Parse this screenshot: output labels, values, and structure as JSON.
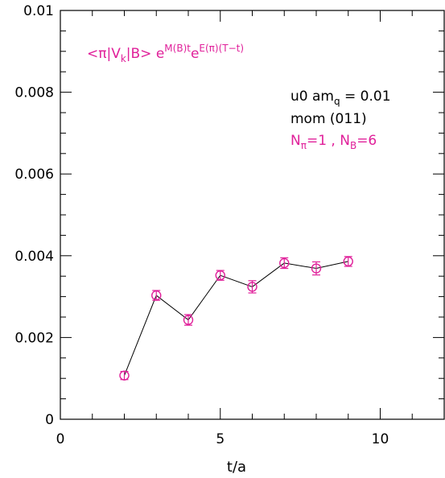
{
  "chart_data": {
    "type": "scatter",
    "xlabel": "t/a",
    "ylabel": "",
    "xlim": [
      0,
      12
    ],
    "ylim": [
      0,
      0.01
    ],
    "x_ticks": [
      "0",
      "5",
      "10"
    ],
    "y_ticks": [
      "0",
      "0.002",
      "0.004",
      "0.006",
      "0.008",
      "0.01"
    ],
    "grid": false,
    "series": [
      {
        "color": "#e0209a",
        "line_color": "#000000",
        "marker": "open-circle",
        "points": [
          {
            "x": 2,
            "y": 0.00107,
            "err": 0.0001
          },
          {
            "x": 3,
            "y": 0.00303,
            "err": 0.00012
          },
          {
            "x": 4,
            "y": 0.00243,
            "err": 0.00013
          },
          {
            "x": 5,
            "y": 0.00352,
            "err": 0.00012
          },
          {
            "x": 6,
            "y": 0.00324,
            "err": 0.00015
          },
          {
            "x": 7,
            "y": 0.00382,
            "err": 0.00013
          },
          {
            "x": 8,
            "y": 0.00369,
            "err": 0.00016
          },
          {
            "x": 9,
            "y": 0.00386,
            "err": 0.00012
          }
        ]
      }
    ],
    "annotations": {
      "formula": {
        "color": "#e0209a",
        "lt": "<π|V",
        "sub_k": "k",
        "mid": "|B>  e",
        "sup1": "M(B)t",
        "e2": "e",
        "sup2": "E(π)(T−t)"
      },
      "line1": {
        "color": "#000000",
        "pre": "u0 am",
        "sub": "q",
        "post": " = 0.01"
      },
      "line2": {
        "color": "#000000",
        "text": "mom (011)"
      },
      "line3": {
        "color": "#e0209a",
        "n1": "N",
        "sub1": "π",
        "eq1": "=1 , N",
        "sub2": "B",
        "eq2": "=6"
      }
    }
  }
}
